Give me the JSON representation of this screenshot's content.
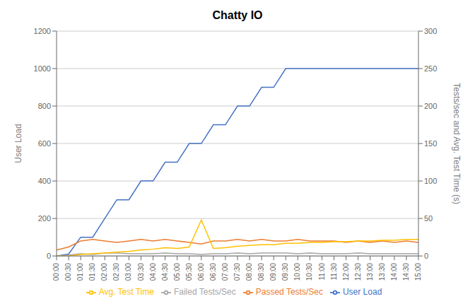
{
  "chart_data": {
    "type": "line",
    "title": "Chatty IO",
    "ylabel": "User Load",
    "y2label": "Tests/sec and Avg. Test Time (s)",
    "categories": [
      "00:00",
      "00:30",
      "01:00",
      "01:30",
      "02:00",
      "02:30",
      "03:00",
      "03:30",
      "04:00",
      "04:30",
      "05:00",
      "05:30",
      "06:00",
      "06:30",
      "07:00",
      "07:30",
      "08:00",
      "08:30",
      "09:00",
      "09:30",
      "10:00",
      "10:30",
      "11:00",
      "11:30",
      "12:00",
      "12:30",
      "13:00",
      "13:30",
      "14:00",
      "14:30",
      "15:00"
    ],
    "series": [
      {
        "name": "User Load",
        "color": "#4472c4",
        "values": [
          0,
          10,
          100,
          100,
          200,
          300,
          300,
          400,
          400,
          500,
          500,
          600,
          600,
          700,
          700,
          800,
          800,
          900,
          900,
          1000,
          1000,
          1000,
          1000,
          1000,
          1000,
          1000,
          1000,
          1000,
          1000,
          1000,
          1000
        ]
      },
      {
        "name": "Passed Tests/Sec",
        "color": "#ed7d31",
        "axis": "y2",
        "values": [
          8,
          12,
          20,
          22,
          20,
          18,
          20,
          22,
          20,
          22,
          20,
          18,
          16,
          20,
          20,
          22,
          20,
          22,
          20,
          20,
          22,
          20,
          20,
          20,
          18,
          20,
          18,
          20,
          18,
          20,
          18
        ]
      },
      {
        "name": "Failed Tests/Sec",
        "color": "#a5a5a5",
        "axis": "y2",
        "values": [
          0,
          1,
          3,
          2,
          4,
          4,
          3,
          3,
          3,
          4,
          3,
          3,
          2,
          3,
          3,
          4,
          3,
          4,
          4,
          4,
          3,
          4,
          3,
          3,
          3,
          4,
          3,
          3,
          3,
          3,
          3
        ]
      },
      {
        "name": "Avg. Test Time",
        "color": "#ffc000",
        "axis": "y2",
        "values": [
          0,
          0,
          2,
          3,
          4,
          5,
          6,
          8,
          9,
          11,
          10,
          12,
          48,
          10,
          11,
          13,
          14,
          15,
          15,
          17,
          17,
          18,
          18,
          19,
          19,
          20,
          20,
          21,
          21,
          22,
          22
        ]
      }
    ],
    "ylim": [
      0,
      1200
    ],
    "yticks": [
      0,
      200,
      400,
      600,
      800,
      1000,
      1200
    ],
    "y2lim": [
      0,
      300
    ],
    "y2ticks": [
      0,
      50,
      100,
      150,
      200,
      250,
      300
    ],
    "grid": true,
    "legend": "bottom"
  }
}
